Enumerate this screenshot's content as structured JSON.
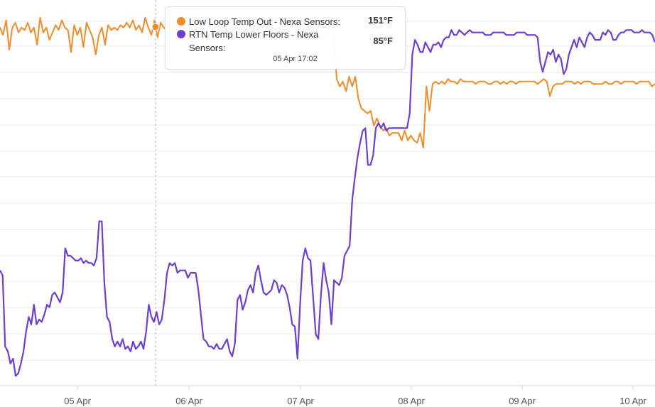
{
  "chart_data": {
    "type": "line",
    "x_ticks": [
      "05 Apr",
      "06 Apr",
      "07 Apr",
      "08 Apr",
      "09 Apr",
      "10 Apr"
    ],
    "series": [
      {
        "name": "Low Loop Temp Out - Nexa Sensors",
        "color": "#f08c2b",
        "values": [
          151,
          148,
          154,
          142,
          151,
          153,
          149,
          151,
          150,
          153,
          149,
          151,
          144,
          155,
          149,
          151,
          146,
          149,
          152,
          150,
          154,
          151,
          150,
          141,
          152,
          148,
          151,
          143,
          153,
          150,
          147,
          140,
          148,
          151,
          144,
          152,
          150,
          151,
          150,
          152,
          151,
          153,
          151,
          154,
          150,
          152,
          149,
          155,
          151,
          148,
          154,
          147,
          153,
          151,
          150,
          152,
          151,
          149,
          153,
          150,
          152,
          151,
          148,
          150,
          151,
          152,
          150,
          153,
          151,
          150,
          149,
          152,
          151,
          150,
          153,
          151,
          152,
          150,
          151,
          153,
          152,
          151,
          150,
          152,
          151,
          150,
          153,
          151,
          152,
          149,
          151,
          152,
          150,
          151,
          153,
          151,
          150,
          152,
          151,
          150,
          152,
          151,
          153,
          150,
          151,
          152,
          150,
          149,
          148,
          130,
          127,
          129,
          125,
          131,
          127,
          131,
          122,
          118,
          117,
          116,
          117,
          111,
          114,
          111,
          109,
          110,
          107,
          108,
          108,
          108,
          105,
          109,
          105,
          107,
          105,
          104,
          108,
          102,
          127,
          117,
          128,
          129,
          128,
          129,
          128,
          130,
          129,
          129,
          128,
          130,
          129,
          129,
          129,
          129,
          128,
          129,
          129,
          129,
          128,
          128,
          129,
          129,
          128,
          129,
          128,
          129,
          129,
          128,
          129,
          129,
          129,
          129,
          129,
          129,
          128,
          129,
          130,
          129,
          123,
          127,
          128,
          128,
          128,
          129,
          129,
          129,
          128,
          129,
          128,
          129,
          129,
          129,
          128,
          128,
          128,
          128,
          129,
          128,
          128,
          129,
          129,
          128,
          129,
          129,
          129,
          129,
          128,
          129,
          129,
          129,
          129,
          127,
          128
        ],
        "tooltip_value": "151°F"
      },
      {
        "name": "RTN Temp Lower Floors - Nexa Sensors",
        "color": "#6c3fd1",
        "values": [
          52,
          50,
          21,
          19,
          14,
          16,
          9,
          10,
          14,
          19,
          27,
          33,
          30,
          38,
          30,
          32,
          31,
          34,
          38,
          37,
          42,
          43,
          41,
          39,
          43,
          61,
          58,
          58,
          57,
          56,
          56,
          57,
          55,
          56,
          55,
          55,
          54,
          57,
          72,
          72,
          47,
          33,
          31,
          24,
          21,
          23,
          21,
          24,
          20,
          21,
          19,
          23,
          20,
          21,
          23,
          20,
          27,
          38,
          33,
          31,
          35,
          30,
          32,
          40,
          51,
          55,
          54,
          55,
          51,
          52,
          52,
          52,
          49,
          51,
          51,
          51,
          44,
          34,
          24,
          23,
          21,
          21,
          20,
          22,
          20,
          20,
          22,
          24,
          19,
          17,
          22,
          40,
          42,
          36,
          39,
          44,
          46,
          43,
          51,
          54,
          48,
          43,
          42,
          43,
          44,
          48,
          47,
          43,
          46,
          45,
          42,
          37,
          30,
          29,
          16,
          38,
          56,
          61,
          57,
          56,
          41,
          26,
          24,
          42,
          55,
          48,
          43,
          30,
          48,
          47,
          46,
          49,
          58,
          60,
          62,
          81,
          90,
          98,
          104,
          109,
          110,
          95,
          95,
          99,
          110,
          112,
          110,
          112,
          109,
          110,
          110,
          110,
          110,
          110,
          110,
          110,
          110,
          116,
          140,
          146,
          144,
          141,
          141,
          145,
          143,
          141,
          144,
          144,
          145,
          143,
          146,
          147,
          147,
          150,
          148,
          148,
          150,
          149,
          148,
          149,
          150,
          149,
          149,
          149,
          149,
          149,
          148,
          148,
          148,
          149,
          149,
          149,
          149,
          149,
          148,
          148,
          148,
          148,
          149,
          149,
          149,
          149,
          148,
          148,
          148,
          148,
          147,
          137,
          133,
          137,
          141,
          140,
          142,
          137,
          140,
          138,
          132,
          134,
          140,
          143,
          146,
          143,
          147,
          145,
          143,
          147,
          149,
          148,
          146,
          146,
          146,
          149,
          148,
          150,
          149,
          146,
          146,
          148,
          149,
          149,
          150,
          150,
          150,
          149,
          149,
          149,
          150,
          149,
          149,
          149,
          148,
          145
        ],
        "tooltip_value": "85°F"
      }
    ],
    "tooltip_time": "05 Apr 17:02",
    "grid": true
  },
  "tooltip": {
    "series_1_label": "Low Loop Temp Out - Nexa Sensors:",
    "series_1_value": "151°F",
    "series_2_label": "RTN Temp Lower Floors - Nexa Sensors:",
    "series_2_value": "85°F",
    "time": "05 Apr 17:02"
  }
}
